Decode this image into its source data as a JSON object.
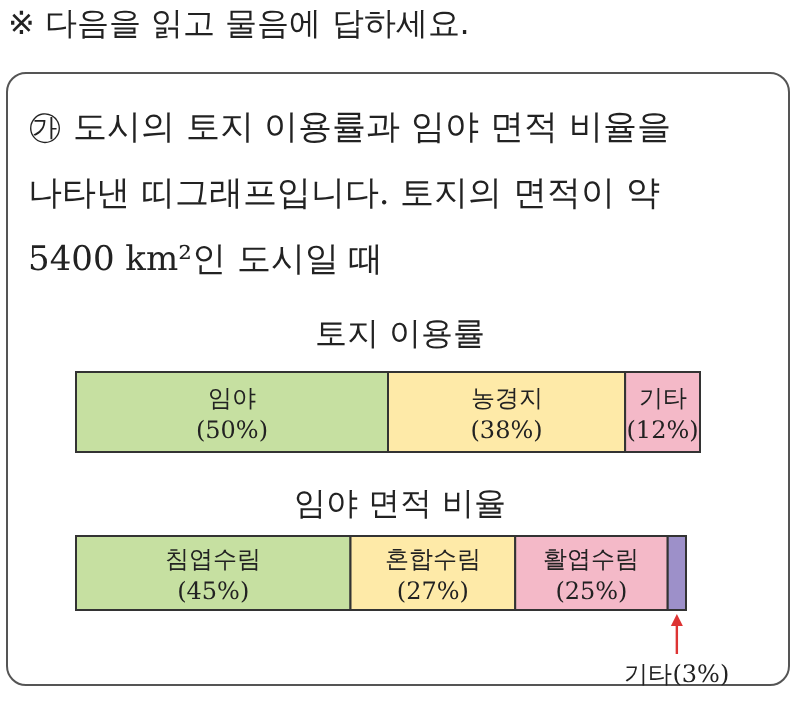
{
  "chart_data": [
    {
      "type": "bar",
      "orientation": "horizontal",
      "stacked": true,
      "title": "토지 이용률",
      "categories": [
        null
      ],
      "xlim": [
        0,
        100
      ],
      "tick_labels": false,
      "annotations": [
        "※ 다음을 읽고 물음에 답하세요.",
        "㉮ 도시의 토지 이용률과 임야 면적 비율을 나타낸 띠그래프입니다. 토지의 면적이 약 5400 km²인 도시일 때"
      ],
      "series": [
        {
          "name": "임야",
          "color": "#c6e0a1",
          "values": [
            50
          ],
          "value_labels": [
            "(50%)"
          ]
        },
        {
          "name": "농경지",
          "color": "#feeaa8",
          "values": [
            38
          ],
          "value_labels": [
            "(38%)"
          ]
        },
        {
          "name": "기타",
          "color": "#f4b9c8",
          "values": [
            12
          ],
          "value_labels": [
            "(12%)"
          ]
        }
      ]
    },
    {
      "type": "bar",
      "orientation": "horizontal",
      "stacked": true,
      "title": "임야 면적 비율",
      "categories": [
        null
      ],
      "xlim": [
        0,
        100
      ],
      "tick_labels": false,
      "series": [
        {
          "name": "침엽수림",
          "color": "#c6e0a1",
          "values": [
            45
          ],
          "value_labels": [
            "(45%)"
          ]
        },
        {
          "name": "혼합수림",
          "color": "#feeaa8",
          "values": [
            27
          ],
          "value_labels": [
            "(27%)"
          ]
        },
        {
          "name": "활엽수림",
          "color": "#f4b9c8",
          "values": [
            25
          ],
          "value_labels": [
            "(25%)"
          ]
        },
        {
          "name": "기타",
          "color": "#9d90c9",
          "values": [
            3
          ],
          "value_labels": [
            "(3%)"
          ]
        }
      ]
    }
  ]
}
